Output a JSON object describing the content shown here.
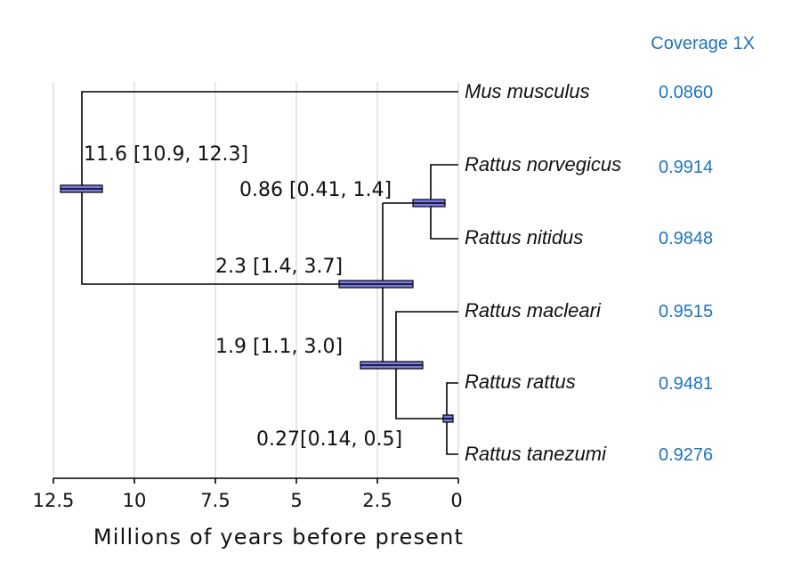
{
  "coverage_header": "Coverage 1X",
  "species": [
    {
      "name": "Mus musculus",
      "coverage": "0.0860"
    },
    {
      "name": "Rattus norvegicus",
      "coverage": "0.9914"
    },
    {
      "name": "Rattus nitidus",
      "coverage": "0.9848"
    },
    {
      "name": "Rattus macleari",
      "coverage": "0.9515"
    },
    {
      "name": "Rattus rattus",
      "coverage": "0.9481"
    },
    {
      "name": "Rattus tanezumi",
      "coverage": "0.9276"
    }
  ],
  "nodes": [
    {
      "label": "11.6 [10.9, 12.3]",
      "age": 11.6,
      "ci": [
        10.9,
        12.3
      ]
    },
    {
      "label": "0.86 [0.41, 1.4]",
      "age": 0.86,
      "ci": [
        0.41,
        1.4
      ]
    },
    {
      "label": "2.3 [1.4, 3.7]",
      "age": 2.3,
      "ci": [
        1.4,
        3.7
      ]
    },
    {
      "label": "1.9 [1.1, 3.0]",
      "age": 1.9,
      "ci": [
        1.1,
        3.0
      ]
    },
    {
      "label": "0.27[0.14, 0.5]",
      "age": 0.27,
      "ci": [
        0.14,
        0.5
      ]
    }
  ],
  "axis": {
    "label": "Millions of years before present",
    "ticks": [
      "12.5",
      "10",
      "7.5",
      "5",
      "2.5",
      "0"
    ],
    "range": [
      12.5,
      0
    ]
  },
  "colors": {
    "bar": "#7b7be8",
    "coverage": "#1f73bf"
  }
}
